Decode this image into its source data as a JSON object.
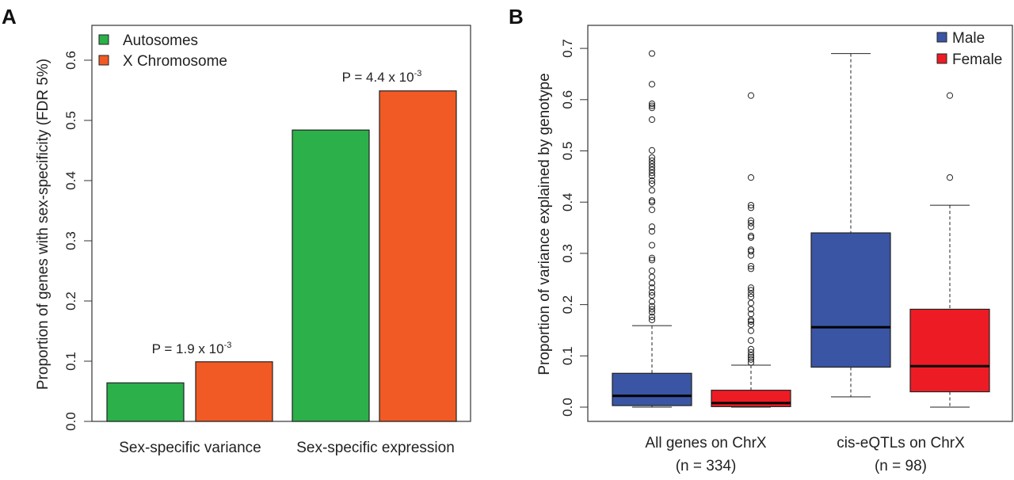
{
  "chart_data": [
    {
      "type": "bar",
      "panel_label": "A",
      "title": "",
      "xlabel": "",
      "ylabel": "Proportion of genes with sex-specificity (FDR 5%)",
      "ylim": [
        0,
        0.66
      ],
      "yticks": [
        "0.0",
        "0.1",
        "0.2",
        "0.3",
        "0.4",
        "0.5",
        "0.6"
      ],
      "categories": [
        "Sex-specific variance",
        "Sex-specific expression"
      ],
      "series": [
        {
          "name": "Autosomes",
          "color": "#2bb04a",
          "values": [
            0.064,
            0.484
          ]
        },
        {
          "name": "X Chromosome",
          "color": "#f15a24",
          "values": [
            0.099,
            0.549
          ]
        }
      ],
      "legend_position": "top-left",
      "annotations": [
        {
          "base": "P = 1.9 x 10",
          "exponent": "-3",
          "category": "Sex-specific variance"
        },
        {
          "base": "P = 4.4 x 10",
          "exponent": "-3",
          "category": "Sex-specific expression"
        }
      ]
    },
    {
      "type": "box",
      "panel_label": "B",
      "title": "",
      "xlabel": "",
      "ylabel": "Proportion of variance explained by genotype",
      "ylim": [
        -0.03,
        0.74
      ],
      "yticks": [
        "0.0",
        "0.1",
        "0.2",
        "0.3",
        "0.4",
        "0.5",
        "0.6",
        "0.7"
      ],
      "categories": [
        {
          "label": "All genes on ChrX",
          "n": "(n = 334)"
        },
        {
          "label": "cis-eQTLs on ChrX",
          "n": "(n = 98)"
        }
      ],
      "legend_position": "top-right",
      "series": [
        {
          "name": "Male",
          "color": "#3a55a4",
          "boxes": [
            {
              "whisker_low": 0.0,
              "q1": 0.003,
              "median": 0.022,
              "q3": 0.066,
              "whisker_high": 0.159,
              "outliers": [
                0.69,
                0.63,
                0.592,
                0.588,
                0.584,
                0.561,
                0.501,
                0.487,
                0.481,
                0.475,
                0.469,
                0.463,
                0.457,
                0.451,
                0.442,
                0.436,
                0.423,
                0.403,
                0.4,
                0.385,
                0.352,
                0.343,
                0.316,
                0.291,
                0.287,
                0.266,
                0.254,
                0.242,
                0.233,
                0.224,
                0.218,
                0.206,
                0.197,
                0.191,
                0.185,
                0.176,
                0.17
              ]
            },
            {
              "whisker_low": 0.02,
              "q1": 0.078,
              "median": 0.156,
              "q3": 0.34,
              "whisker_high": 0.69,
              "outliers": []
            }
          ]
        },
        {
          "name": "Female",
          "color": "#ed1c24",
          "boxes": [
            {
              "whisker_low": 0.0,
              "q1": 0.001,
              "median": 0.008,
              "q3": 0.033,
              "whisker_high": 0.082,
              "outliers": [
                0.608,
                0.448,
                0.394,
                0.389,
                0.364,
                0.359,
                0.352,
                0.334,
                0.331,
                0.307,
                0.304,
                0.296,
                0.275,
                0.27,
                0.233,
                0.228,
                0.221,
                0.215,
                0.203,
                0.191,
                0.182,
                0.17,
                0.167,
                0.161,
                0.149,
                0.13,
                0.113,
                0.107,
                0.101,
                0.097,
                0.093,
                0.087
              ]
            },
            {
              "whisker_low": 0.0,
              "q1": 0.03,
              "median": 0.08,
              "q3": 0.191,
              "whisker_high": 0.394,
              "outliers": [
                0.608,
                0.448
              ]
            }
          ]
        }
      ]
    }
  ]
}
